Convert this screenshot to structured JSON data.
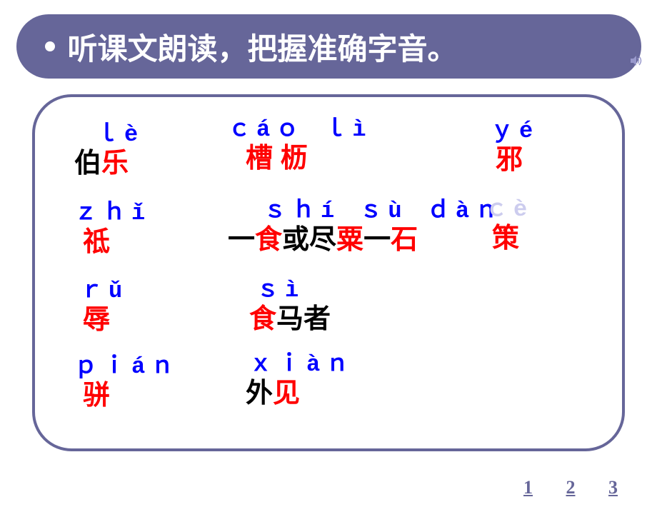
{
  "title": "听课文朗读，把握准确字音。",
  "colors": {
    "titlebar_bg": "#666699",
    "titlebar_text": "#ffffff",
    "border": "#666699",
    "pinyin": "#0000ff",
    "pinyin_faded": "#ccccee",
    "key_char": "#ff0000",
    "normal_char": "#000000",
    "nav": "#666699"
  },
  "fonts": {
    "title_size": 42,
    "pinyin_size": 32,
    "hanzi_size": 38,
    "nav_size": 26
  },
  "col1": [
    {
      "pinyin": "ｌè",
      "parts": [
        {
          "t": "伯",
          "c": "black"
        },
        {
          "t": "乐",
          "c": "red"
        }
      ]
    },
    {
      "pinyin": "ｚｈǐ",
      "parts": [
        {
          "t": "祗",
          "c": "red"
        }
      ]
    },
    {
      "pinyin": "ｒǔ",
      "parts": [
        {
          "t": "辱",
          "c": "red"
        }
      ]
    },
    {
      "pinyin": "ｐｉáｎ",
      "parts": [
        {
          "t": "骈",
          "c": "red"
        }
      ]
    }
  ],
  "col2": [
    {
      "pinyin": "ｃáｏ ｌì",
      "parts": [
        {
          "t": "槽",
          "c": "red"
        },
        {
          "t": "  ",
          "c": "black"
        },
        {
          "t": "枥",
          "c": "red"
        }
      ]
    },
    {
      "pinyin": "ｓｈí ｓù ｄàｎ",
      "parts": [
        {
          "t": "一",
          "c": "black"
        },
        {
          "t": "食",
          "c": "red"
        },
        {
          "t": "或尽",
          "c": "black"
        },
        {
          "t": "粟",
          "c": "red"
        },
        {
          "t": "一",
          "c": "black"
        },
        {
          "t": "石",
          "c": "red"
        }
      ]
    },
    {
      "pinyin": "ｓì",
      "parts": [
        {
          "t": "食",
          "c": "red"
        },
        {
          "t": "马者",
          "c": "black"
        }
      ]
    },
    {
      "pinyin": "ｘｉàｎ",
      "parts": [
        {
          "t": "外",
          "c": "black"
        },
        {
          "t": "见",
          "c": "red"
        }
      ]
    }
  ],
  "col3": [
    {
      "pinyin": "ｙé",
      "parts": [
        {
          "t": "邪",
          "c": "red"
        }
      ]
    },
    {
      "pinyin": "ｃè",
      "pinyin_class": "alt",
      "parts": [
        {
          "t": "策",
          "c": "red"
        }
      ]
    }
  ],
  "nav": [
    "1",
    "2",
    "3"
  ]
}
